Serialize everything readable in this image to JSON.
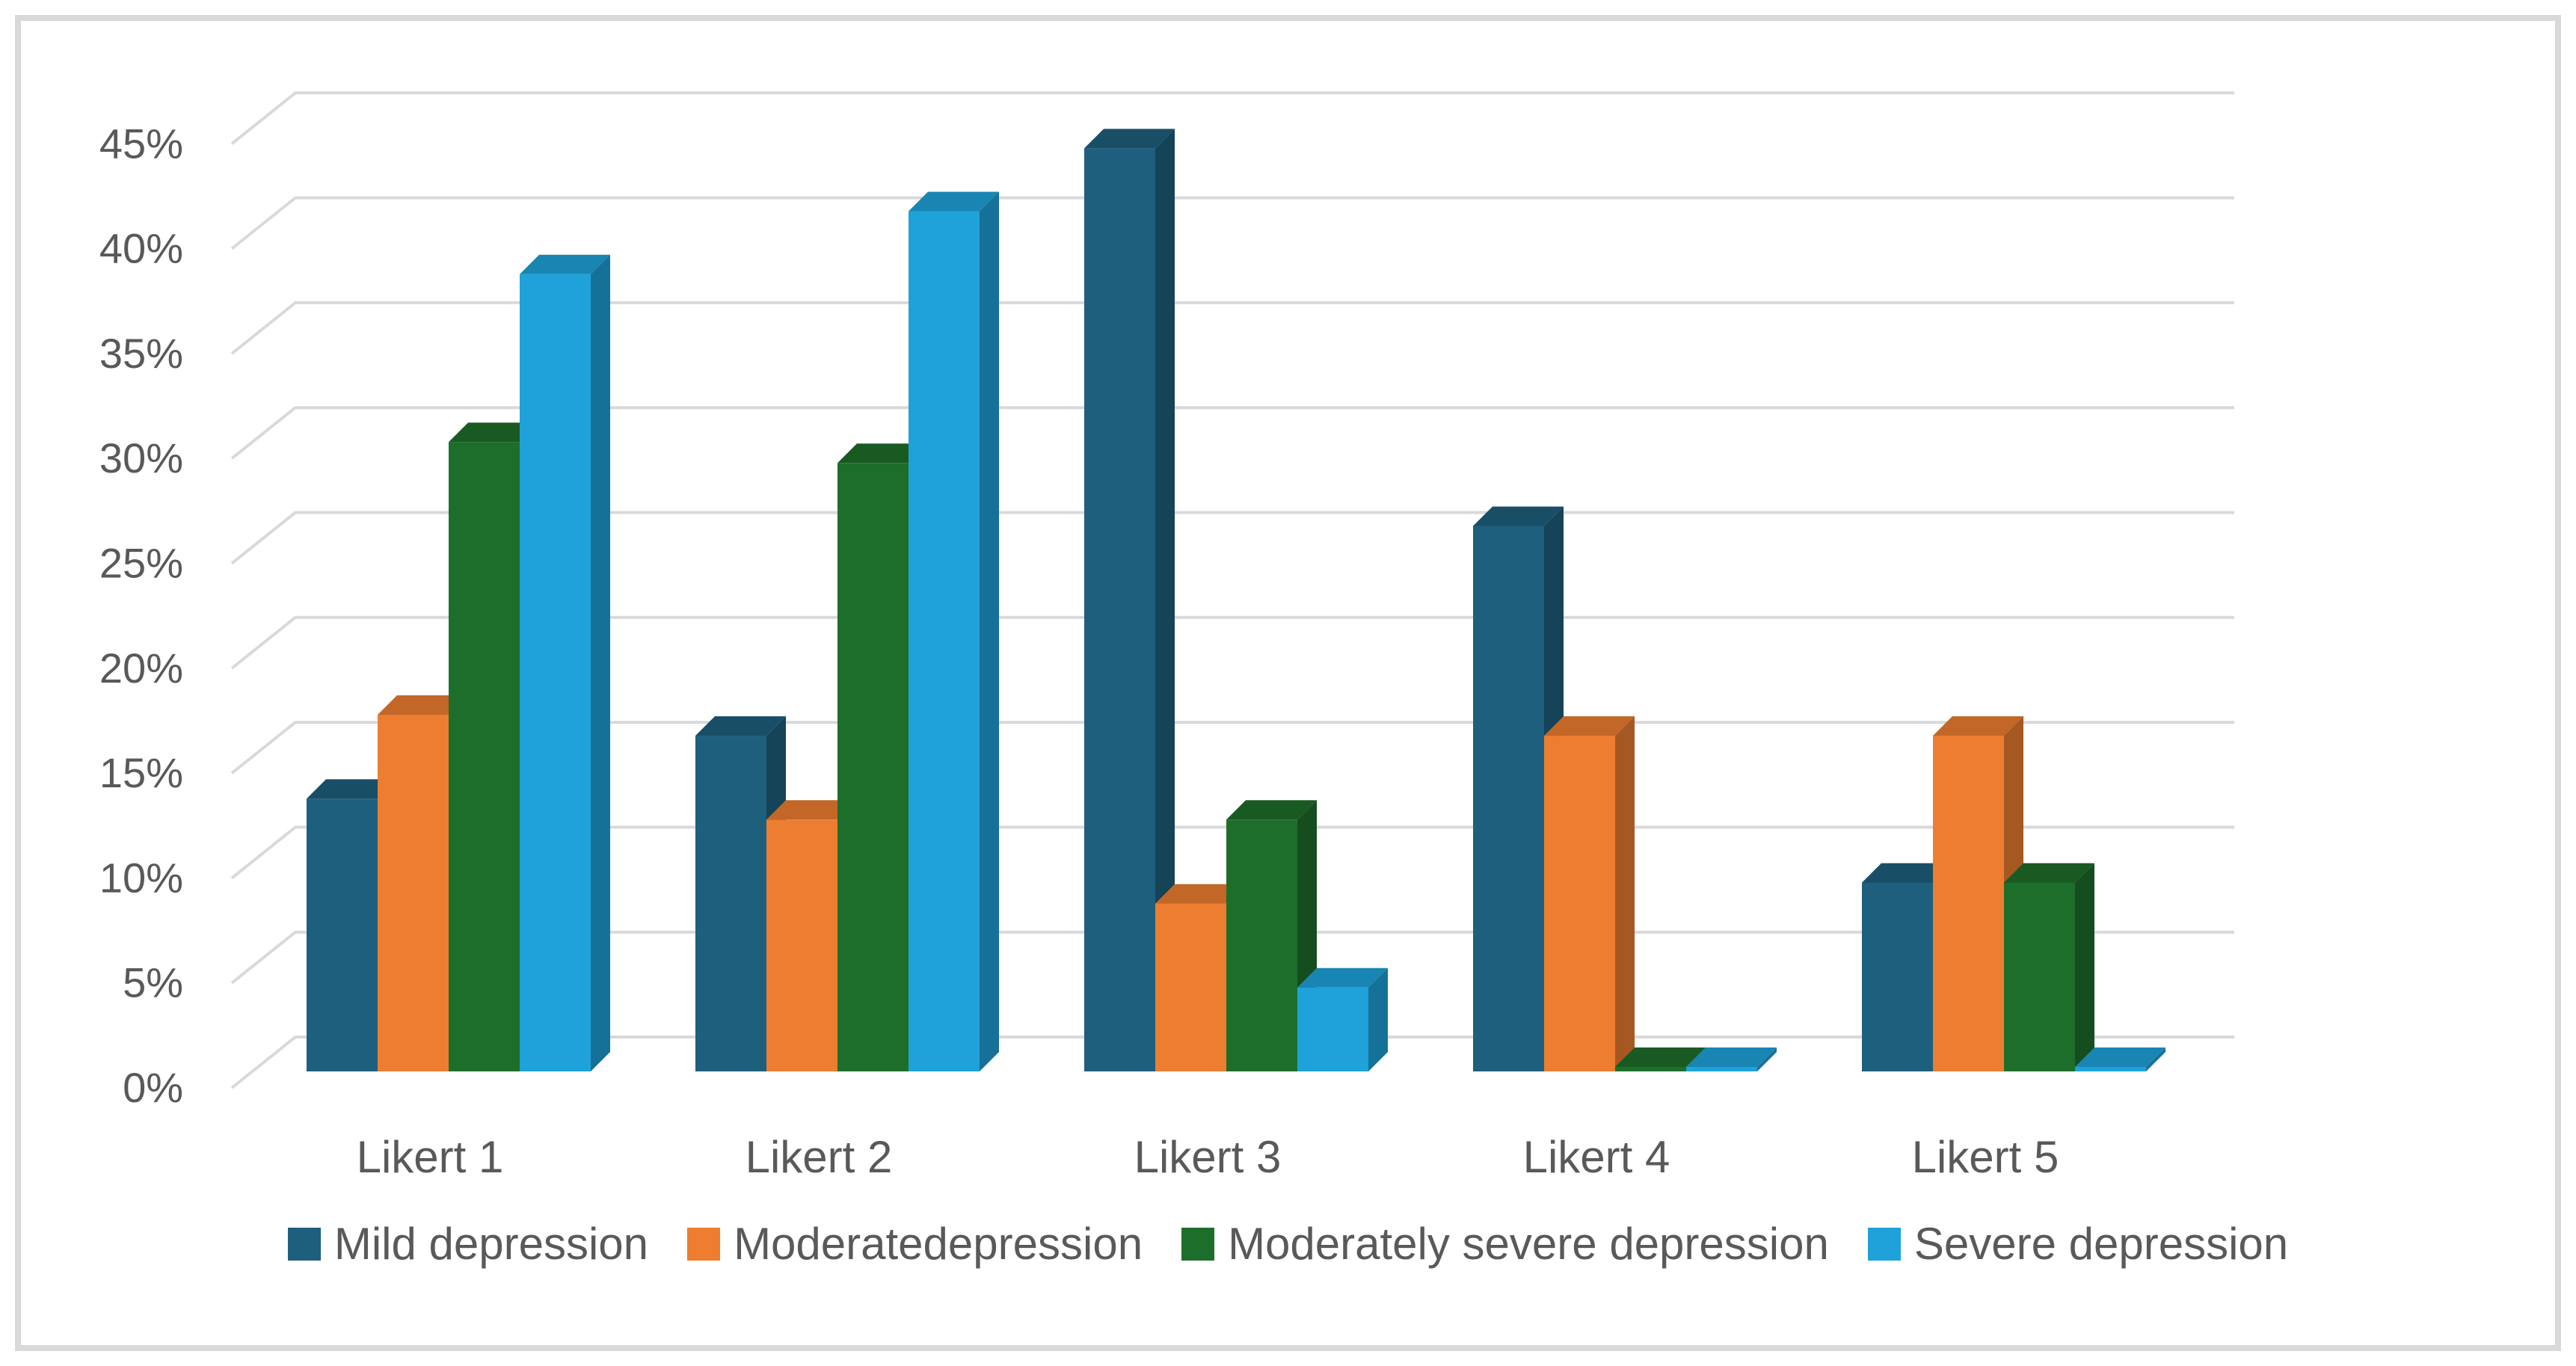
{
  "chart_data": {
    "type": "bar",
    "variant": "3d-clustered-column",
    "categories": [
      "Likert 1",
      "Likert 2",
      "Likert 3",
      "Likert 4",
      "Likert 5"
    ],
    "series": [
      {
        "name": "Mild depression",
        "color": "#1E5F7E",
        "values": [
          13,
          16,
          44,
          26,
          9
        ]
      },
      {
        "name": "Moderatedepression",
        "color": "#EC7D31",
        "values": [
          17,
          12,
          8,
          16,
          16
        ]
      },
      {
        "name": "Moderately severe depression",
        "color": "#1E6E2B",
        "values": [
          30,
          29,
          12,
          0,
          9
        ]
      },
      {
        "name": "Severe depression",
        "color": "#1FA2DA",
        "values": [
          38,
          41,
          4,
          0,
          0
        ]
      }
    ],
    "y_axis": {
      "min": 0,
      "max": 45,
      "step": 5,
      "unit": "%",
      "tick_labels": [
        "0%",
        "5%",
        "10%",
        "15%",
        "20%",
        "25%",
        "30%",
        "35%",
        "40%",
        "45%"
      ]
    },
    "xlabel": "",
    "ylabel": "",
    "title": "",
    "grid": true,
    "legend_position": "bottom"
  },
  "style": {
    "text_color": "#595959",
    "gridline_color": "#D9D9D9",
    "frame_color": "#D9D9D9",
    "background": "#FFFFFF"
  }
}
